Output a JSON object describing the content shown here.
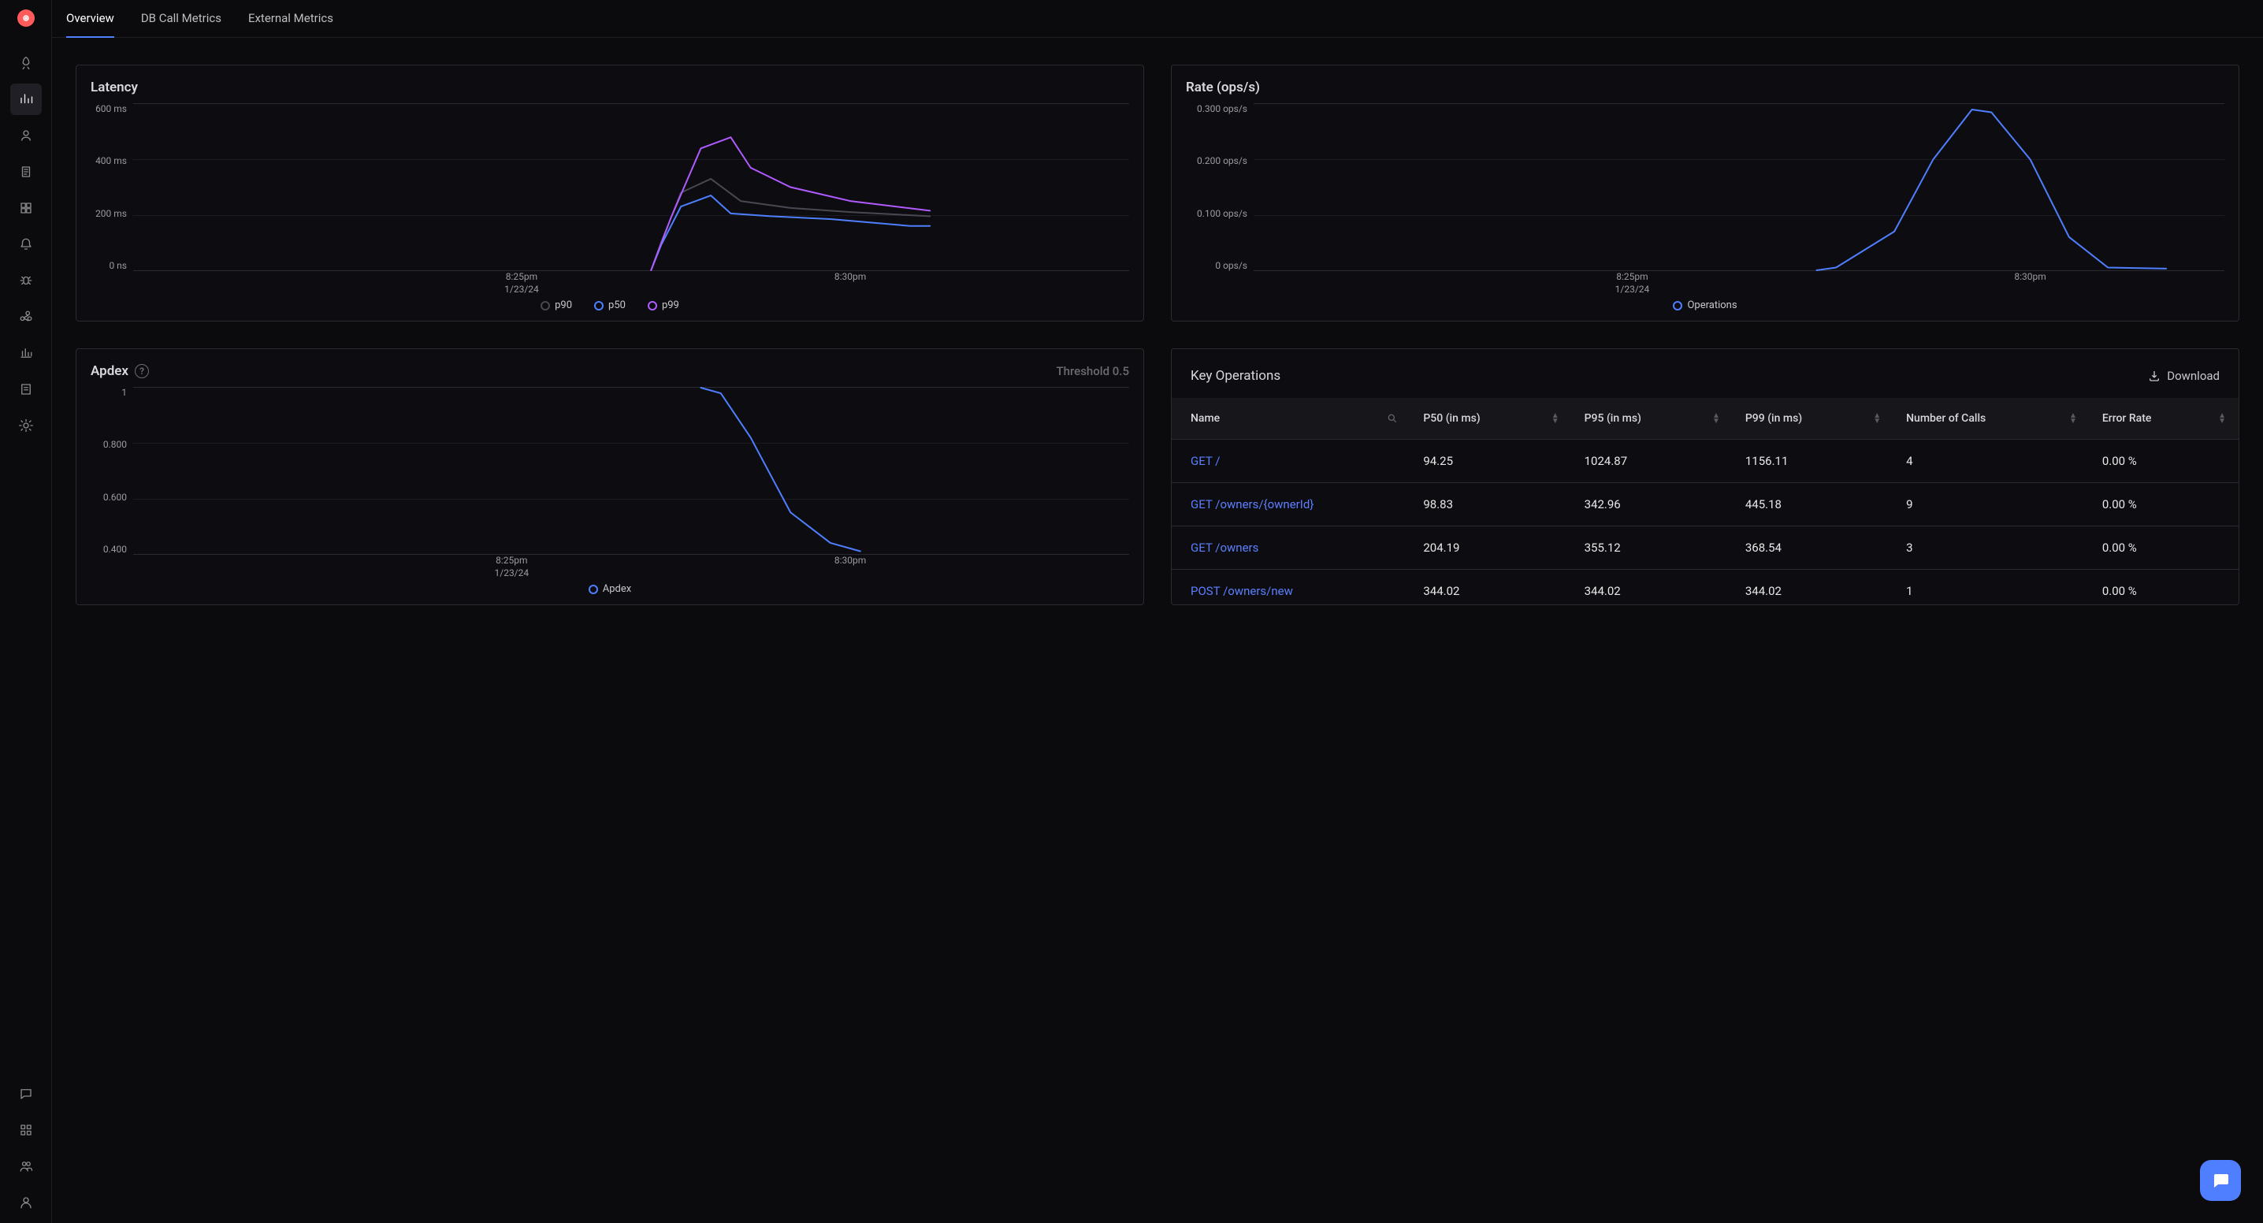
{
  "brand_color": "#ff5b5b",
  "accent_color": "#4f7fff",
  "tabs": [
    {
      "id": "overview",
      "label": "Overview",
      "active": true
    },
    {
      "id": "db",
      "label": "DB Call Metrics",
      "active": false
    },
    {
      "id": "external",
      "label": "External Metrics",
      "active": false
    }
  ],
  "sidebar": {
    "icons": [
      {
        "name": "rocket-icon",
        "active": false
      },
      {
        "name": "metrics-icon",
        "active": true
      },
      {
        "name": "user-icon",
        "active": false
      },
      {
        "name": "logs-icon",
        "active": false
      },
      {
        "name": "dashboards-icon",
        "active": false
      },
      {
        "name": "alerts-icon",
        "active": false
      },
      {
        "name": "bugs-icon",
        "active": false
      },
      {
        "name": "share-icon",
        "active": false
      },
      {
        "name": "reports-icon",
        "active": false
      },
      {
        "name": "billing-icon",
        "active": false
      },
      {
        "name": "settings-icon",
        "active": false
      }
    ],
    "bottom_icons": [
      {
        "name": "chat-icon"
      },
      {
        "name": "apps-icon"
      },
      {
        "name": "team-icon"
      },
      {
        "name": "account-icon"
      }
    ]
  },
  "latency_chart": {
    "title": "Latency",
    "type": "line",
    "y_ticks": [
      "600 ms",
      "400 ms",
      "200 ms",
      "0 ns"
    ],
    "x_ticks": [
      {
        "pos": 0.39,
        "line1": "8:25pm",
        "line2": "1/23/24"
      },
      {
        "pos": 0.72,
        "line1": "8:30pm",
        "line2": ""
      }
    ],
    "series": [
      {
        "key": "p90",
        "label": "p90",
        "color": "#484852"
      },
      {
        "key": "p50",
        "label": "p50",
        "color": "#4f7fff"
      },
      {
        "key": "p99",
        "label": "p99",
        "color": "#b05bff"
      }
    ],
    "x_range": [
      0,
      1
    ],
    "y_range": [
      0,
      600
    ],
    "paths": {
      "p50": [
        [
          0.52,
          0
        ],
        [
          0.53,
          90
        ],
        [
          0.55,
          230
        ],
        [
          0.58,
          270
        ],
        [
          0.6,
          205
        ],
        [
          0.64,
          195
        ],
        [
          0.7,
          185
        ],
        [
          0.78,
          160
        ],
        [
          0.8,
          160
        ]
      ],
      "p90": [
        [
          0.52,
          0
        ],
        [
          0.53,
          100
        ],
        [
          0.55,
          280
        ],
        [
          0.58,
          330
        ],
        [
          0.61,
          250
        ],
        [
          0.66,
          225
        ],
        [
          0.72,
          210
        ],
        [
          0.8,
          195
        ]
      ],
      "p99": [
        [
          0.52,
          0
        ],
        [
          0.54,
          190
        ],
        [
          0.57,
          440
        ],
        [
          0.6,
          480
        ],
        [
          0.62,
          370
        ],
        [
          0.66,
          300
        ],
        [
          0.72,
          250
        ],
        [
          0.8,
          215
        ]
      ]
    },
    "line_width": 2,
    "background_color": "#0d0d11",
    "grid_color": "#1b1b20"
  },
  "rate_chart": {
    "title": "Rate (ops/s)",
    "type": "line",
    "y_ticks": [
      "0.300 ops/s",
      "0.200 ops/s",
      "0.100 ops/s",
      "0 ops/s"
    ],
    "x_ticks": [
      {
        "pos": 0.39,
        "line1": "8:25pm",
        "line2": "1/23/24"
      },
      {
        "pos": 0.8,
        "line1": "8:30pm",
        "line2": ""
      }
    ],
    "series": [
      {
        "key": "ops",
        "label": "Operations",
        "color": "#4f7fff"
      }
    ],
    "y_range": [
      0,
      0.3
    ],
    "paths": {
      "ops": [
        [
          0.58,
          0
        ],
        [
          0.6,
          0.005
        ],
        [
          0.66,
          0.07
        ],
        [
          0.7,
          0.2
        ],
        [
          0.74,
          0.29
        ],
        [
          0.76,
          0.285
        ],
        [
          0.8,
          0.2
        ],
        [
          0.84,
          0.06
        ],
        [
          0.88,
          0.005
        ],
        [
          0.94,
          0.003
        ]
      ]
    },
    "line_width": 2
  },
  "apdex_chart": {
    "title": "Apdex",
    "threshold_label": "Threshold 0.5",
    "type": "line",
    "y_ticks": [
      "1",
      "0.800",
      "0.600",
      "0.400"
    ],
    "y_range": [
      0.4,
      1.0
    ],
    "x_ticks": [
      {
        "pos": 0.38,
        "line1": "8:25pm",
        "line2": "1/23/24"
      },
      {
        "pos": 0.72,
        "line1": "8:30pm",
        "line2": ""
      }
    ],
    "series": [
      {
        "key": "apdex",
        "label": "Apdex",
        "color": "#4f7fff"
      }
    ],
    "paths": {
      "apdex": [
        [
          0.57,
          1.0
        ],
        [
          0.59,
          0.98
        ],
        [
          0.62,
          0.82
        ],
        [
          0.66,
          0.55
        ],
        [
          0.7,
          0.44
        ],
        [
          0.73,
          0.41
        ]
      ]
    },
    "line_width": 2
  },
  "key_ops": {
    "title": "Key Operations",
    "download_label": "Download",
    "columns": [
      {
        "key": "name",
        "label": "Name",
        "search": true
      },
      {
        "key": "p50",
        "label": "P50 (in ms)"
      },
      {
        "key": "p95",
        "label": "P95 (in ms)"
      },
      {
        "key": "p99",
        "label": "P99 (in ms)"
      },
      {
        "key": "calls",
        "label": "Number of Calls"
      },
      {
        "key": "err",
        "label": "Error Rate"
      }
    ],
    "rows": [
      {
        "name": "GET /",
        "p50": "94.25",
        "p95": "1024.87",
        "p99": "1156.11",
        "calls": "4",
        "err": "0.00 %"
      },
      {
        "name": "GET /owners/{ownerId}",
        "p50": "98.83",
        "p95": "342.96",
        "p99": "445.18",
        "calls": "9",
        "err": "0.00 %"
      },
      {
        "name": "GET /owners",
        "p50": "204.19",
        "p95": "355.12",
        "p99": "368.54",
        "calls": "3",
        "err": "0.00 %"
      },
      {
        "name": "POST /owners/new",
        "p50": "344.02",
        "p95": "344.02",
        "p99": "344.02",
        "calls": "1",
        "err": "0.00 %"
      }
    ]
  }
}
